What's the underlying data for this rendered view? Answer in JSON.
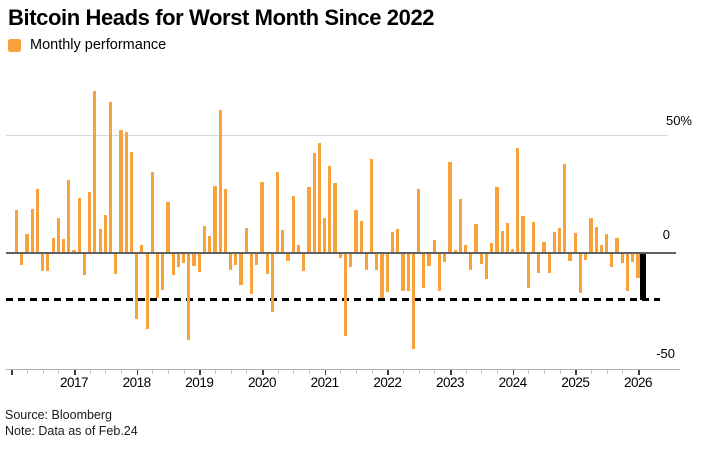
{
  "header": {
    "title": "Bitcoin Heads for Worst Month Since 2022",
    "legend_label": "Monthly performance"
  },
  "footer": {
    "source": "Source: Bloomberg",
    "note": "Note: Data as of Feb.24"
  },
  "colors": {
    "bar_orange": "#F9A13A",
    "current_bar_black": "#000000",
    "reference_dash": "#000000"
  },
  "chart_data": {
    "type": "bar",
    "title": "Bitcoin Heads for Worst Month Since 2022",
    "legend": [
      "Monthly performance"
    ],
    "ylabel": "",
    "xlabel": "",
    "unit": "%",
    "ylim": [
      -50,
      75
    ],
    "y_ticks": [
      {
        "label": "50%",
        "value": 50
      },
      {
        "label": "0",
        "value": 0
      },
      {
        "label": "-50",
        "value": -50
      }
    ],
    "x_tick_years": [
      "2017",
      "2018",
      "2019",
      "2020",
      "2021",
      "2022",
      "2023",
      "2024",
      "2025",
      "2026"
    ],
    "start_month": "2016-02",
    "series_name": "Monthly performance",
    "values": [
      18.0,
      -4.8,
      7.7,
      18.5,
      26.9,
      -7.7,
      -7.5,
      6.0,
      14.7,
      5.4,
      30.8,
      1.0,
      23.3,
      -9.3,
      25.8,
      69.0,
      10.0,
      16.0,
      64.5,
      -9.0,
      52.5,
      51.5,
      43.0,
      -28.2,
      3.0,
      -32.5,
      34.2,
      -19.0,
      -15.5,
      21.5,
      -9.2,
      -6.0,
      -4.0,
      -37.2,
      -5.5,
      -8.0,
      11.1,
      7.0,
      28.2,
      61.0,
      27.0,
      -7.0,
      -5.0,
      -13.5,
      10.3,
      -17.3,
      -5.1,
      29.9,
      -8.6,
      -24.9,
      34.3,
      9.5,
      -3.2,
      24.0,
      2.8,
      -7.5,
      27.7,
      42.5,
      46.9,
      14.5,
      36.8,
      29.8,
      -1.9,
      -35.4,
      -6.0,
      18.2,
      13.5,
      -7.0,
      39.9,
      -7.1,
      -18.9,
      -16.7,
      8.5,
      9.8,
      -16.2,
      -15.9,
      -41.0,
      27.0,
      -15.0,
      -5.5,
      5.0,
      -16.1,
      -3.6,
      38.5,
      0.8,
      22.8,
      3.0,
      -7.2,
      11.9,
      -4.3,
      -10.9,
      4.0,
      28.0,
      9.0,
      12.5,
      1.5,
      44.5,
      15.5,
      -15.0,
      13.0,
      -8.5,
      4.2,
      -8.3,
      8.5,
      10.3,
      37.8,
      -3.1,
      8.0,
      -17.0,
      -2.7,
      14.5,
      10.8,
      2.9,
      7.9,
      -5.8,
      5.9,
      -3.9,
      -16.0,
      -3.6,
      -10.7,
      -20.0
    ],
    "current_month_value": -20.0,
    "reference_line_value": -20.2,
    "grid": "horizontal-only",
    "legend_position": "top-left"
  }
}
